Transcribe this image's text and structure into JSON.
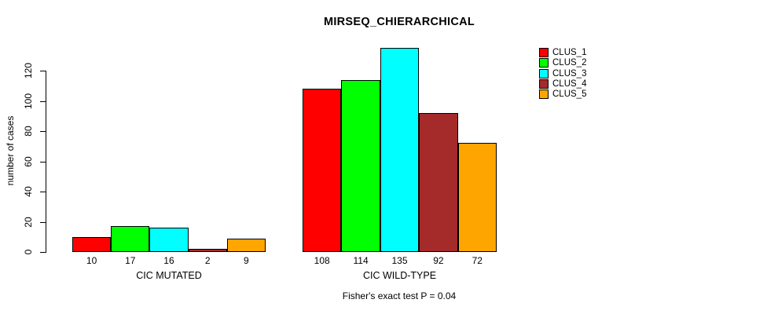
{
  "title": "MIRSEQ_CHIERARCHICAL",
  "footer": "Fisher's exact test P = 0.04",
  "chart_data": {
    "type": "bar",
    "title": "MIRSEQ_CHIERARCHICAL",
    "xlabel": "",
    "ylabel": "number of cases",
    "ylim": [
      0,
      135
    ],
    "yticks": [
      0,
      20,
      40,
      60,
      80,
      100,
      120
    ],
    "grid": false,
    "legend_position": "top-right",
    "bar_value_labels": true,
    "annotation": "Fisher's exact test P = 0.04",
    "categories": [
      "CIC MUTATED",
      "CIC WILD-TYPE"
    ],
    "series": [
      {
        "name": "CLUS_1",
        "color": "#ff0000",
        "values": [
          10,
          108
        ]
      },
      {
        "name": "CLUS_2",
        "color": "#00ff00",
        "values": [
          17,
          114
        ]
      },
      {
        "name": "CLUS_3",
        "color": "#00ffff",
        "values": [
          16,
          135
        ]
      },
      {
        "name": "CLUS_4",
        "color": "#a52a2a",
        "values": [
          2,
          92
        ]
      },
      {
        "name": "CLUS_5",
        "color": "#ffa500",
        "values": [
          9,
          72
        ]
      }
    ]
  },
  "colors": {
    "axis": "#000000",
    "background": "#ffffff",
    "bar_border": "#000000"
  }
}
